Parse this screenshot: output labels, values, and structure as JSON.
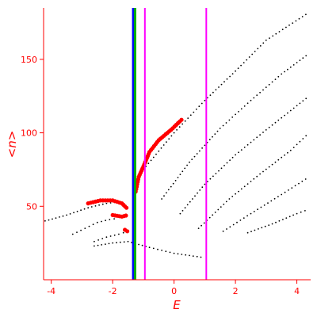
{
  "chart_data": {
    "type": "scatter",
    "xlabel": "E",
    "ylabel": "<n>",
    "xlim": [
      -4.25,
      4.45
    ],
    "ylim": [
      0,
      185
    ],
    "xticks": [
      "-4",
      "-2",
      "0",
      "2",
      "4"
    ],
    "yticks": [
      "50",
      "100",
      "150"
    ],
    "grid": false,
    "legend": "none",
    "colors": {
      "axis": "#ff0000",
      "black_points": "#000000",
      "red_points": "#ff0000",
      "vline_blue": "#0000ff",
      "vline_green": "#00aa00",
      "vline_magenta": "#ff00ff"
    },
    "vertical_lines": [
      {
        "x": -1.33,
        "color": "blue"
      },
      {
        "x": -1.27,
        "color": "green"
      },
      {
        "x": -0.95,
        "color": "magenta"
      },
      {
        "x": 1.05,
        "color": "magenta"
      }
    ],
    "series": [
      {
        "color": "black",
        "marker": "dot",
        "curves": [
          [
            [
              -4.2,
              40
            ],
            [
              -3.5,
              44
            ],
            [
              -2.8,
              49
            ],
            [
              -2.2,
              52
            ],
            [
              -1.8,
              53
            ]
          ],
          [
            [
              -3.3,
              31
            ],
            [
              -2.9,
              35
            ],
            [
              -2.5,
              39
            ],
            [
              -2.1,
              41
            ],
            [
              -1.8,
              42
            ]
          ],
          [
            [
              -2.6,
              26
            ],
            [
              -2.2,
              29
            ],
            [
              -1.8,
              31
            ],
            [
              -1.5,
              33
            ]
          ],
          [
            [
              -2.6,
              23
            ],
            [
              -2.0,
              25
            ],
            [
              -1.5,
              26
            ],
            [
              -0.8,
              22
            ],
            [
              0,
              18
            ],
            [
              1,
              15
            ]
          ],
          [
            [
              -1.0,
              75
            ],
            [
              0,
              100
            ],
            [
              1,
              122
            ],
            [
              2,
              142
            ],
            [
              3,
              163
            ],
            [
              4.4,
              182
            ]
          ],
          [
            [
              -0.4,
              55
            ],
            [
              0.5,
              80
            ],
            [
              1.5,
              103
            ],
            [
              2.5,
              122
            ],
            [
              3.5,
              140
            ],
            [
              4.4,
              154
            ]
          ],
          [
            [
              0.2,
              45
            ],
            [
              1,
              65
            ],
            [
              2,
              85
            ],
            [
              3,
              102
            ],
            [
              4.4,
              125
            ]
          ],
          [
            [
              0.8,
              35
            ],
            [
              1.8,
              55
            ],
            [
              2.8,
              72
            ],
            [
              3.8,
              88
            ],
            [
              4.4,
              100
            ]
          ],
          [
            [
              1.6,
              33
            ],
            [
              2.5,
              45
            ],
            [
              3.5,
              58
            ],
            [
              4.4,
              70
            ]
          ],
          [
            [
              2.4,
              32
            ],
            [
              3.2,
              38
            ],
            [
              4,
              45
            ],
            [
              4.4,
              48
            ]
          ]
        ]
      },
      {
        "color": "red",
        "marker": "large-dot",
        "curves": [
          [
            [
              -2.8,
              52
            ],
            [
              -2.4,
              54
            ],
            [
              -2.0,
              54
            ],
            [
              -1.7,
              52
            ],
            [
              -1.5,
              48
            ]
          ],
          [
            [
              -2.0,
              44
            ],
            [
              -1.7,
              43
            ],
            [
              -1.5,
              44
            ]
          ],
          [
            [
              -1.6,
              34
            ],
            [
              -1.45,
              32
            ]
          ],
          [
            [
              -1.25,
              60
            ],
            [
              -1.15,
              70
            ],
            [
              -1.0,
              77
            ],
            [
              -0.8,
              87
            ],
            [
              -0.5,
              95
            ],
            [
              -0.1,
              102
            ],
            [
              0.3,
              110
            ]
          ]
        ]
      }
    ]
  }
}
